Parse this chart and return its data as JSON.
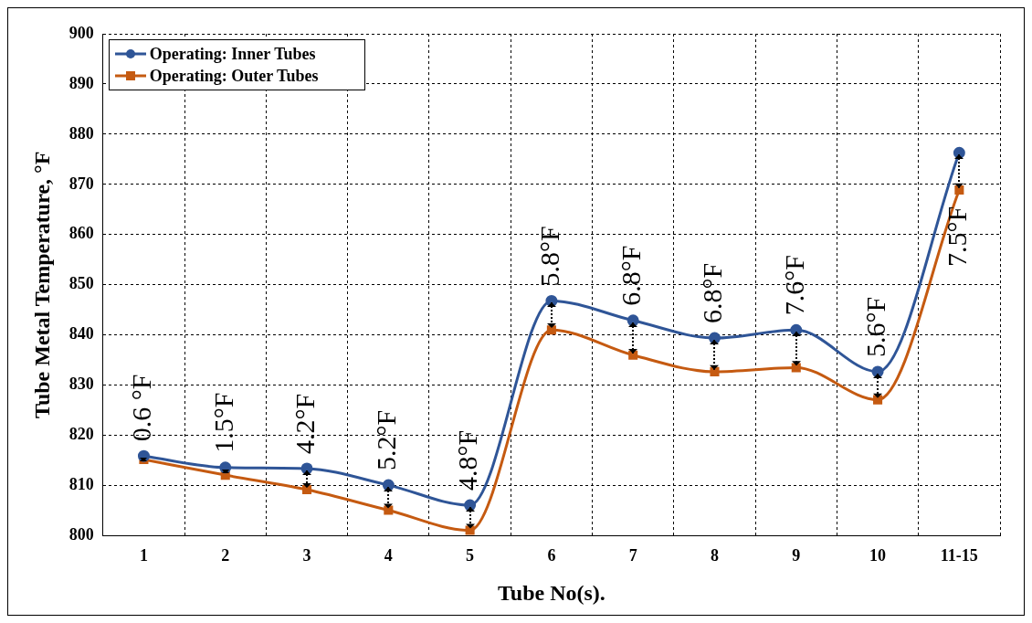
{
  "chart_data": {
    "type": "line",
    "xlabel": "Tube No(s).",
    "ylabel": "Tube Metal Temperature, °F",
    "categories": [
      "1",
      "2",
      "3",
      "4",
      "5",
      "6",
      "7",
      "8",
      "9",
      "10",
      "11-15"
    ],
    "series": [
      {
        "name": "Operating: Inner Tubes",
        "color": "#2f5597",
        "marker": "circle",
        "values": [
          815.9,
          813.6,
          813.4,
          810.1,
          806.1,
          846.8,
          842.9,
          839.4,
          841.0,
          832.7,
          876.3
        ]
      },
      {
        "name": "Operating: Outer Tubes",
        "color": "#c55a11",
        "marker": "square",
        "values": [
          815.2,
          812.1,
          809.2,
          805.1,
          801.1,
          841.0,
          836.0,
          832.7,
          833.5,
          827.1,
          868.9
        ]
      }
    ],
    "ylim": [
      800,
      900
    ],
    "yticks": [
      800,
      810,
      820,
      830,
      840,
      850,
      860,
      870,
      880,
      890,
      900
    ],
    "grid": true,
    "legend": "top left",
    "line_style": "solid",
    "annotations": [
      "0.6 °F",
      "1.5°F",
      "4.2°F",
      "5.2°F",
      "4.8°F",
      "5.8°F",
      "6.8°F",
      "6.8°F",
      "7.6°F",
      "5.6°F",
      "7.5°F"
    ]
  }
}
